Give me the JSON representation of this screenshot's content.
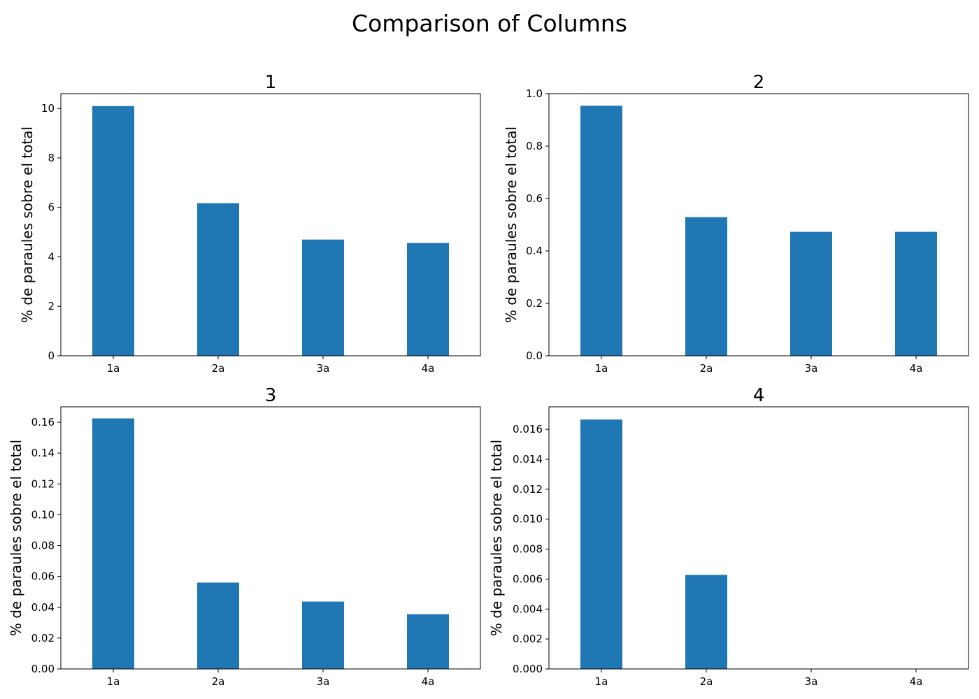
{
  "title": "Comparison of Columns",
  "colors": {
    "bar": "#1f77b4",
    "axis": "#000000",
    "background": "#ffffff"
  },
  "chart_data": [
    {
      "type": "bar",
      "title": "1",
      "xlabel": "",
      "ylabel": "% de paraules sobre el total",
      "categories": [
        "1a",
        "2a",
        "3a",
        "4a"
      ],
      "values": [
        10.1,
        6.17,
        4.7,
        4.56
      ],
      "ylim": [
        0,
        10.6
      ],
      "yticks": [
        0,
        2,
        4,
        6,
        8,
        10
      ],
      "ytick_labels": [
        "0",
        "2",
        "4",
        "6",
        "8",
        "10"
      ],
      "grid": false
    },
    {
      "type": "bar",
      "title": "2",
      "xlabel": "",
      "ylabel": "% de paraules sobre el total",
      "categories": [
        "1a",
        "2a",
        "3a",
        "4a"
      ],
      "values": [
        0.954,
        0.529,
        0.473,
        0.473
      ],
      "ylim": [
        0,
        1.0
      ],
      "yticks": [
        0,
        0.2,
        0.4,
        0.6,
        0.8,
        1.0
      ],
      "ytick_labels": [
        "0.0",
        "0.2",
        "0.4",
        "0.6",
        "0.8",
        "1.0"
      ],
      "grid": false
    },
    {
      "type": "bar",
      "title": "3",
      "xlabel": "",
      "ylabel": "% de paraules sobre el total",
      "categories": [
        "1a",
        "2a",
        "3a",
        "4a"
      ],
      "values": [
        0.1625,
        0.056,
        0.0437,
        0.0355
      ],
      "ylim": [
        0,
        0.17
      ],
      "yticks": [
        0,
        0.02,
        0.04,
        0.06,
        0.08,
        0.1,
        0.12,
        0.14,
        0.16
      ],
      "ytick_labels": [
        "0.00",
        "0.02",
        "0.04",
        "0.06",
        "0.08",
        "0.10",
        "0.12",
        "0.14",
        "0.16"
      ],
      "grid": false
    },
    {
      "type": "bar",
      "title": "4",
      "xlabel": "",
      "ylabel": "% de paraules sobre el total",
      "categories": [
        "1a",
        "2a",
        "3a",
        "4a"
      ],
      "values": [
        0.01665,
        0.00628,
        0,
        0
      ],
      "ylim": [
        0,
        0.0175
      ],
      "yticks": [
        0,
        0.002,
        0.004,
        0.006,
        0.008,
        0.01,
        0.012,
        0.014,
        0.016
      ],
      "ytick_labels": [
        "0.000",
        "0.002",
        "0.004",
        "0.006",
        "0.008",
        "0.010",
        "0.012",
        "0.014",
        "0.016"
      ],
      "grid": false
    }
  ]
}
